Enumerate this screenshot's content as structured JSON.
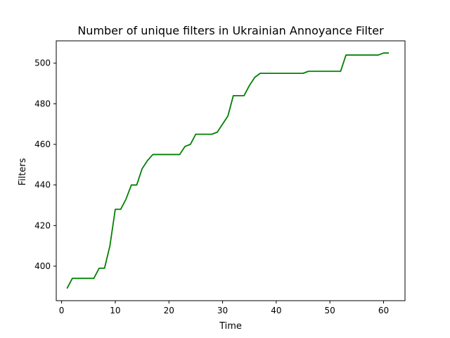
{
  "chart_data": {
    "type": "line",
    "title": "Number of unique filters in Ukrainian Annoyance Filter",
    "xlabel": "Time",
    "ylabel": "Filters",
    "xlim": [
      -1.0,
      64.0
    ],
    "ylim": [
      383.0,
      511.0
    ],
    "xticks": [
      0,
      10,
      20,
      30,
      40,
      50,
      60
    ],
    "yticks": [
      400,
      420,
      440,
      460,
      480,
      500
    ],
    "grid": false,
    "series": [
      {
        "color": "#008000",
        "x": [
          1,
          2,
          3,
          4,
          5,
          6,
          7,
          8,
          9,
          10,
          11,
          12,
          13,
          14,
          15,
          16,
          17,
          18,
          19,
          20,
          21,
          22,
          23,
          24,
          25,
          26,
          27,
          28,
          29,
          30,
          31,
          32,
          33,
          34,
          35,
          36,
          37,
          38,
          39,
          40,
          41,
          42,
          43,
          44,
          45,
          46,
          47,
          48,
          49,
          50,
          51,
          52,
          53,
          54,
          55,
          56,
          57,
          58,
          59,
          60,
          61
        ],
        "values": [
          389,
          394,
          394,
          394,
          394,
          394,
          399,
          399,
          410,
          428,
          428,
          433,
          440,
          440,
          448,
          452,
          455,
          455,
          455,
          455,
          455,
          455,
          459,
          460,
          465,
          465,
          465,
          465,
          466,
          470,
          474,
          484,
          484,
          484,
          489,
          493,
          495,
          495,
          495,
          495,
          495,
          495,
          495,
          495,
          495,
          496,
          496,
          496,
          496,
          496,
          496,
          496,
          504,
          504,
          504,
          504,
          504,
          504,
          504,
          505,
          505
        ]
      }
    ]
  }
}
